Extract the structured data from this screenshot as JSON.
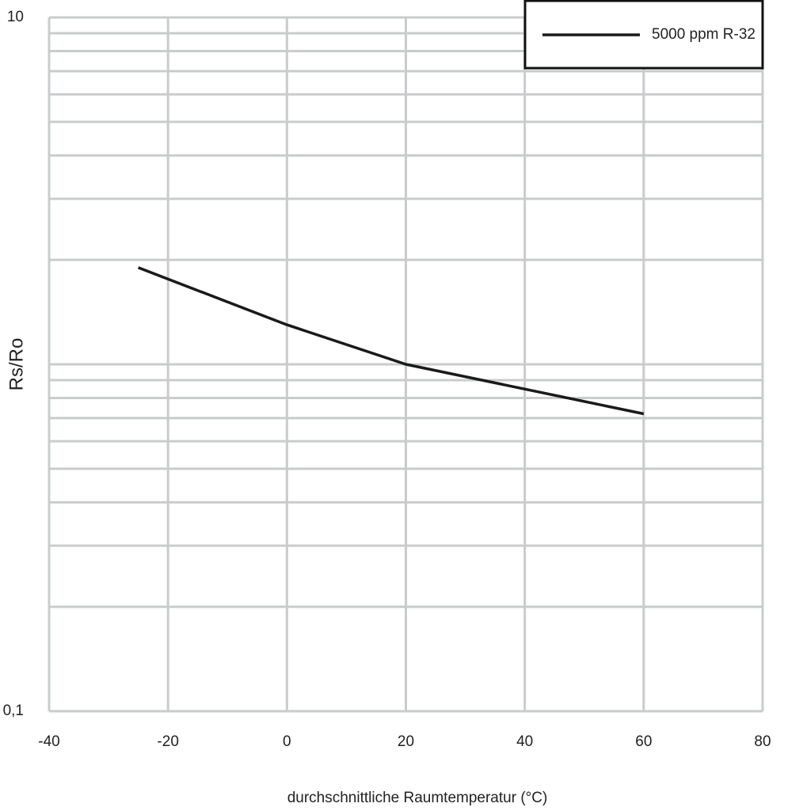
{
  "chart_data": {
    "type": "line",
    "x_label": "durchschnittliche Raumtemperatur (°C)",
    "y_label": "Rs/Ro",
    "x": [
      -25,
      0,
      20,
      60
    ],
    "series": [
      {
        "name": "5000 ppm R-32",
        "color": "#1a1a1a",
        "values": [
          1.9,
          1.3,
          1.0,
          0.72
        ]
      }
    ],
    "xlim": [
      -40,
      80
    ],
    "xticks": [
      -40,
      -20,
      0,
      20,
      40,
      60,
      80
    ],
    "ylim": [
      0.1,
      10
    ],
    "yticks": [
      10,
      {
        "value": 0.1,
        "label": "0,1"
      }
    ],
    "log_y": true,
    "grid": true,
    "minor_grid": true,
    "grid_color": "#c8cccc",
    "legend": "upper right"
  }
}
